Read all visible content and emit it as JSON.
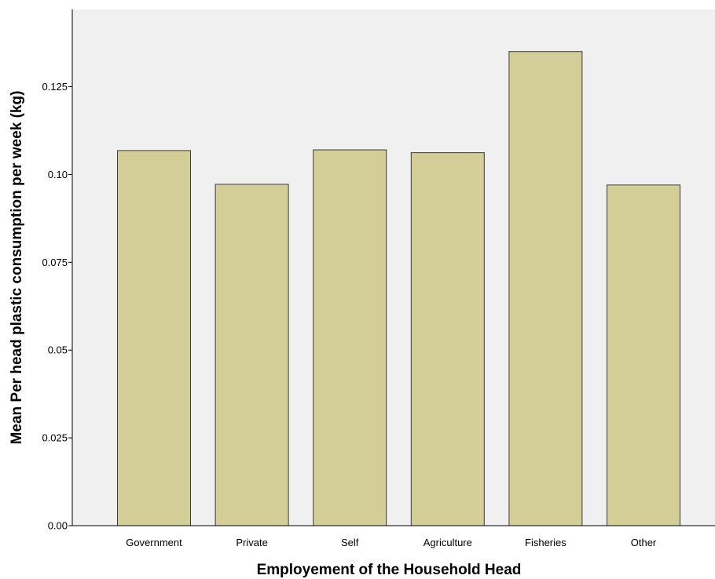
{
  "chart_data": {
    "type": "bar",
    "title": "",
    "xlabel": "Employement of the Household Head",
    "ylabel": "Mean Per head plastic consumption per week (kg)",
    "categories": [
      "Government",
      "Private",
      "Self",
      "Agriculture",
      "Fisheries",
      "Other"
    ],
    "values": [
      0.1068,
      0.0972,
      0.107,
      0.1062,
      0.135,
      0.097
    ],
    "ylim": [
      0,
      0.147
    ],
    "yticks": [
      0.0,
      0.025,
      0.05,
      0.075,
      0.1,
      0.125
    ],
    "ytick_labels": [
      "0.00",
      "0.025",
      "0.05",
      "0.075",
      "0.10",
      "0.125"
    ],
    "grid": false,
    "legend": "none",
    "colors": {
      "plot_background": "#f0f0f0",
      "bar_fill": "#d3ce97",
      "bar_stroke": "#3a3a3a",
      "axis": "#000000"
    }
  }
}
